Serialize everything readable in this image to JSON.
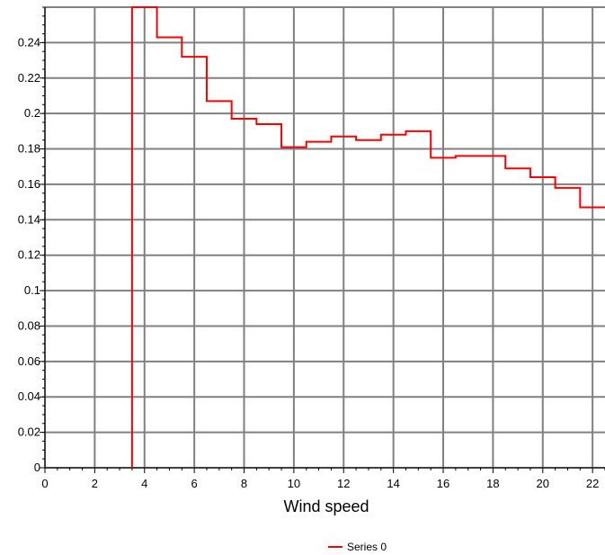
{
  "chart_data": {
    "type": "line",
    "title": "",
    "xlabel": "Wind speed",
    "ylabel": "",
    "xlim": [
      0,
      22.5
    ],
    "ylim": [
      0,
      0.26
    ],
    "x_ticks": [
      "0",
      "2",
      "4",
      "6",
      "8",
      "10",
      "12",
      "14",
      "16",
      "18",
      "20",
      "22"
    ],
    "y_ticks": [
      "0",
      "0.02",
      "0.04",
      "0.06",
      "0.08",
      "0.1",
      "0.12",
      "0.14",
      "0.16",
      "0.18",
      "0.2",
      "0.22",
      "0.24"
    ],
    "grid": true,
    "legend_position": "bottom",
    "series": [
      {
        "name": "Series 0",
        "color": "#ff0000",
        "style": "step",
        "x": [
          3.5,
          3.5,
          4.5,
          5.5,
          6.5,
          7.5,
          8.5,
          9.5,
          10.5,
          11.5,
          12.5,
          13.5,
          14.5,
          15.5,
          16.5,
          17.5,
          18.5,
          19.5,
          20.5,
          21.5,
          22.5
        ],
        "values": [
          0,
          0.26,
          0.243,
          0.232,
          0.207,
          0.197,
          0.194,
          0.181,
          0.184,
          0.187,
          0.185,
          0.188,
          0.19,
          0.175,
          0.176,
          0.176,
          0.169,
          0.164,
          0.158,
          0.147,
          0.147
        ]
      }
    ]
  }
}
